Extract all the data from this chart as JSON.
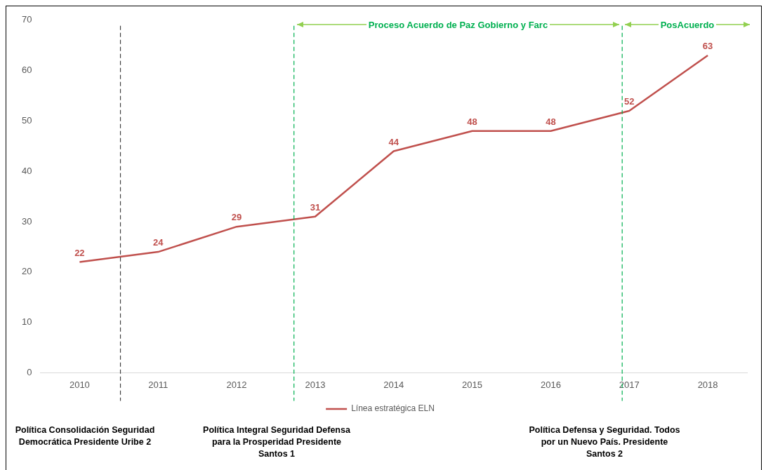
{
  "chart_data": {
    "type": "line",
    "x": [
      2010,
      2011,
      2012,
      2013,
      2014,
      2015,
      2016,
      2017,
      2018
    ],
    "series": [
      {
        "name": "Línea estratégica ELN",
        "color": "#c0504d",
        "values": [
          22,
          24,
          29,
          31,
          44,
          48,
          48,
          52,
          63
        ]
      }
    ],
    "xlim": [
      2009.5,
      2018.5
    ],
    "xticks": [
      2010,
      2011,
      2012,
      2013,
      2014,
      2015,
      2016,
      2017,
      2018
    ],
    "ylim": [
      0,
      70
    ],
    "yticks": [
      0,
      10,
      20,
      30,
      40,
      50,
      60,
      70
    ],
    "grid": false,
    "legend": "bottom",
    "marker": "none",
    "line_style": "solid",
    "data_labels": true,
    "ref_lines": [
      {
        "axis": "x",
        "value": 2010.52,
        "label": null,
        "color": "#404040",
        "line_style": "dashed"
      },
      {
        "axis": "x",
        "value": 2012.73,
        "label": null,
        "color": "#00b050",
        "line_style": "dashed"
      },
      {
        "axis": "x",
        "value": 2016.91,
        "label": null,
        "color": "#00b050",
        "line_style": "dashed"
      }
    ],
    "annotations": [
      "Proceso Acuerdo de Paz  Gobierno y Farc",
      "PosAcuerdo",
      "Política  Consolidación Seguridad Democrática Presidente Uribe 2",
      "Política Integral Seguridad Defensa para la Prosperidad Presidente Santos 1",
      "Política Defensa y Seguridad. Todos por un Nuevo País. Presidente Santos 2"
    ]
  }
}
